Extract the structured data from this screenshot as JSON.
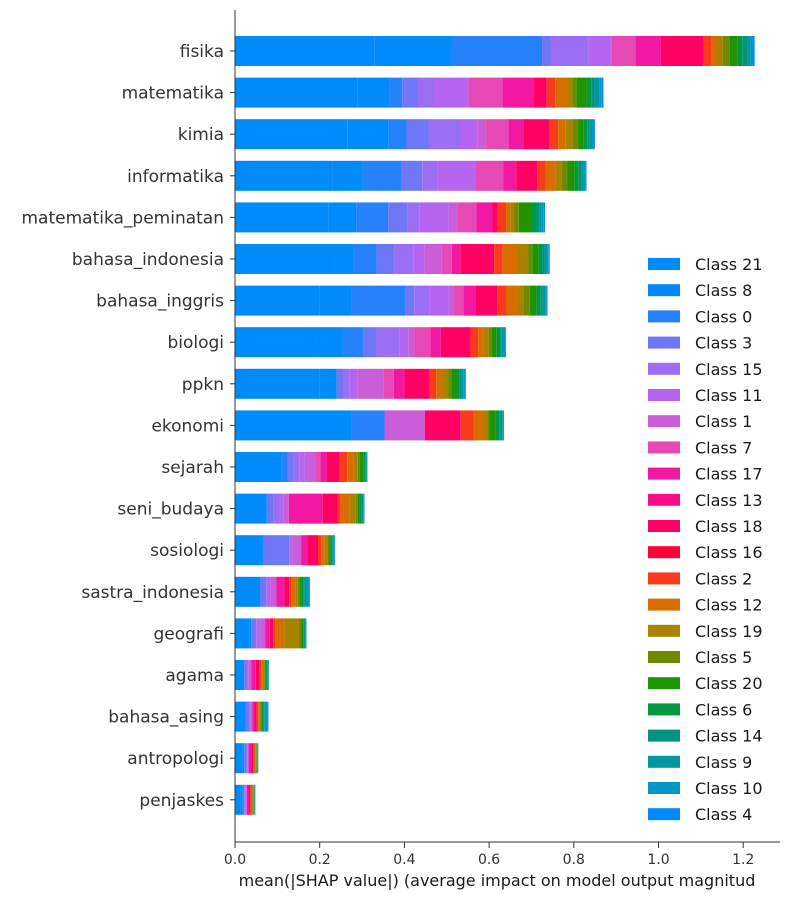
{
  "chart_data": {
    "type": "bar",
    "orientation": "horizontal",
    "stacked": true,
    "title": "",
    "xlabel": "mean(|SHAP value|) (average impact on model output magnitud",
    "ylabel": "",
    "xlim": [
      0.0,
      1.27
    ],
    "x_ticks": [
      "0.0",
      "0.2",
      "0.4",
      "0.6",
      "0.8",
      "1.0",
      "1.2"
    ],
    "x_tick_values": [
      0.0,
      0.2,
      0.4,
      0.6,
      0.8,
      1.0,
      1.2
    ],
    "grid": false,
    "legend_position": "lower-right",
    "categories": [
      "fisika",
      "matematika",
      "kimia",
      "informatika",
      "matematika_peminatan",
      "bahasa_indonesia",
      "bahasa_inggris",
      "biologi",
      "ppkn",
      "ekonomi",
      "sejarah",
      "seni_budaya",
      "sosiologi",
      "sastra_indonesia",
      "geografi",
      "agama",
      "bahasa_asing",
      "antropologi",
      "penjaskes"
    ],
    "series": [
      {
        "name": "Class 21",
        "color": "#008bfb",
        "values": [
          0.33,
          0.29,
          0.265,
          0.23,
          0.22,
          0.235,
          0.2,
          0.19,
          0.2,
          0.275,
          0.11,
          0.075,
          0.065,
          0.06,
          0.035,
          0.02,
          0.025,
          0.018,
          0.014
        ]
      },
      {
        "name": "Class 8",
        "color": "#008bfb",
        "values": [
          0.18,
          0.075,
          0.098,
          0.072,
          0.066,
          0.045,
          0.075,
          0.064,
          0.04,
          0.0,
          0.0,
          0.0,
          0.003,
          0.0,
          0.003,
          0.002,
          0.001,
          0.004,
          0.004
        ]
      },
      {
        "name": "Class 0",
        "color": "#2582fb",
        "values": [
          0.215,
          0.03,
          0.042,
          0.09,
          0.076,
          0.055,
          0.128,
          0.05,
          0.0,
          0.078,
          0.015,
          0.002,
          0.0,
          0.0,
          0.0,
          0.0,
          0.0,
          0.0,
          0.002
        ]
      },
      {
        "name": "Class 3",
        "color": "#6f77f7",
        "values": [
          0.02,
          0.036,
          0.053,
          0.05,
          0.045,
          0.042,
          0.02,
          0.03,
          0.015,
          0.0,
          0.012,
          0.013,
          0.06,
          0.014,
          0.012,
          0.004,
          0.008,
          0.004,
          0.002
        ]
      },
      {
        "name": "Class 15",
        "color": "#9c6ef4",
        "values": [
          0.09,
          0.04,
          0.078,
          0.037,
          0.028,
          0.045,
          0.037,
          0.055,
          0.015,
          0.0,
          0.016,
          0.015,
          0.0,
          0.0,
          0.0,
          0.005,
          0.003,
          0.004,
          0.003
        ]
      },
      {
        "name": "Class 11",
        "color": "#b565ef",
        "values": [
          0.055,
          0.08,
          0.037,
          0.09,
          0.07,
          0.025,
          0.045,
          0.02,
          0.02,
          0.0,
          0.012,
          0.01,
          0.008,
          0.01,
          0.01,
          0.0,
          0.0,
          0.0,
          0.0
        ]
      },
      {
        "name": "Class 1",
        "color": "#c95ed8",
        "values": [
          0.0,
          0.0,
          0.02,
          0.0,
          0.02,
          0.04,
          0.012,
          0.015,
          0.06,
          0.095,
          0.025,
          0.012,
          0.02,
          0.014,
          0.012,
          0.008,
          0.004,
          0.003,
          0.003
        ]
      },
      {
        "name": "Class 7",
        "color": "#e648b5",
        "values": [
          0.055,
          0.08,
          0.053,
          0.065,
          0.045,
          0.025,
          0.022,
          0.037,
          0.025,
          0.0,
          0.012,
          0.0,
          0.0,
          0.0,
          0.0,
          0.0,
          0.0,
          0.0,
          0.0
        ]
      },
      {
        "name": "Class 17",
        "color": "#f318a3",
        "values": [
          0.06,
          0.075,
          0.035,
          0.03,
          0.038,
          0.02,
          0.03,
          0.025,
          0.025,
          0.0,
          0.015,
          0.08,
          0.015,
          0.018,
          0.01,
          0.01,
          0.005,
          0.005,
          0.004
        ]
      },
      {
        "name": "Class 13",
        "color": "#ff0a88",
        "values": [
          0.0,
          0.0,
          0.0,
          0.0,
          0.0,
          0.0,
          0.0,
          0.0,
          0.0,
          0.0,
          0.0,
          0.0,
          0.0,
          0.0,
          0.0,
          0.0,
          0.0,
          0.0,
          0.0
        ]
      },
      {
        "name": "Class 18",
        "color": "#ff0063",
        "values": [
          0.1,
          0.03,
          0.062,
          0.05,
          0.012,
          0.08,
          0.05,
          0.07,
          0.06,
          0.085,
          0.03,
          0.035,
          0.025,
          0.012,
          0.008,
          0.008,
          0.005,
          0.005,
          0.004
        ]
      },
      {
        "name": "Class 16",
        "color": "#ff0036",
        "values": [
          0.0,
          0.0,
          0.0,
          0.0,
          0.0,
          0.0,
          0.0,
          0.0,
          0.0,
          0.0,
          0.0,
          0.0,
          0.0,
          0.0,
          0.0,
          0.0,
          0.0,
          0.0,
          0.0
        ]
      },
      {
        "name": "Class 2",
        "color": "#f73b1b",
        "values": [
          0.02,
          0.02,
          0.02,
          0.02,
          0.02,
          0.02,
          0.022,
          0.018,
          0.015,
          0.03,
          0.018,
          0.008,
          0.008,
          0.006,
          0.006,
          0.005,
          0.004,
          0.003,
          0.003
        ]
      },
      {
        "name": "Class 12",
        "color": "#d66e00",
        "values": [
          0.012,
          0.028,
          0.018,
          0.023,
          0.01,
          0.035,
          0.026,
          0.013,
          0.015,
          0.025,
          0.015,
          0.02,
          0.008,
          0.008,
          0.02,
          0.004,
          0.003,
          0.002,
          0.002
        ]
      },
      {
        "name": "Class 19",
        "color": "#a88200",
        "values": [
          0.015,
          0.012,
          0.017,
          0.015,
          0.01,
          0.025,
          0.014,
          0.012,
          0.013,
          0.008,
          0.01,
          0.015,
          0.006,
          0.006,
          0.035,
          0.003,
          0.002,
          0.002,
          0.002
        ]
      },
      {
        "name": "Class 5",
        "color": "#6f8a00",
        "values": [
          0.015,
          0.01,
          0.012,
          0.013,
          0.01,
          0.01,
          0.015,
          0.007,
          0.008,
          0.005,
          0.005,
          0.005,
          0.004,
          0.004,
          0.006,
          0.002,
          0.002,
          0.001,
          0.001
        ]
      },
      {
        "name": "Class 20",
        "color": "#1f9400",
        "values": [
          0.02,
          0.025,
          0.012,
          0.017,
          0.03,
          0.015,
          0.015,
          0.012,
          0.012,
          0.015,
          0.008,
          0.005,
          0.004,
          0.006,
          0.004,
          0.003,
          0.003,
          0.001,
          0.001
        ]
      },
      {
        "name": "Class 6",
        "color": "#009841",
        "values": [
          0.012,
          0.01,
          0.01,
          0.01,
          0.012,
          0.008,
          0.01,
          0.008,
          0.008,
          0.008,
          0.004,
          0.004,
          0.003,
          0.004,
          0.003,
          0.002,
          0.002,
          0.001,
          0.001
        ]
      },
      {
        "name": "Class 14",
        "color": "#009480",
        "values": [
          0.01,
          0.008,
          0.006,
          0.006,
          0.006,
          0.006,
          0.006,
          0.004,
          0.004,
          0.004,
          0.002,
          0.002,
          0.002,
          0.003,
          0.002,
          0.002,
          0.002,
          0.001,
          0.001
        ]
      },
      {
        "name": "Class 9",
        "color": "#0097a0",
        "values": [
          0.008,
          0.012,
          0.006,
          0.006,
          0.006,
          0.006,
          0.006,
          0.005,
          0.005,
          0.004,
          0.002,
          0.002,
          0.002,
          0.006,
          0.002,
          0.001,
          0.004,
          0.001,
          0.001
        ]
      },
      {
        "name": "Class 10",
        "color": "#0097c4",
        "values": [
          0.006,
          0.005,
          0.004,
          0.004,
          0.004,
          0.004,
          0.003,
          0.003,
          0.003,
          0.002,
          0.001,
          0.002,
          0.002,
          0.004,
          0.001,
          0.001,
          0.004,
          0.0,
          0.0
        ]
      },
      {
        "name": "Class 4",
        "color": "#008bfb",
        "values": [
          0.004,
          0.004,
          0.002,
          0.002,
          0.004,
          0.002,
          0.002,
          0.002,
          0.002,
          0.001,
          0.001,
          0.001,
          0.001,
          0.002,
          0.0,
          0.0,
          0.002,
          0.0,
          0.0
        ]
      }
    ],
    "legend_order": [
      "Class 21",
      "Class 8",
      "Class 0",
      "Class 3",
      "Class 15",
      "Class 11",
      "Class 1",
      "Class 7",
      "Class 17",
      "Class 13",
      "Class 18",
      "Class 16",
      "Class 2",
      "Class 12",
      "Class 19",
      "Class 5",
      "Class 20",
      "Class 6",
      "Class 14",
      "Class 9",
      "Class 10",
      "Class 4"
    ],
    "legend_colors": [
      "#008bfb",
      "#0088fb",
      "#2582fb",
      "#6f77f7",
      "#9c6ef4",
      "#b565ef",
      "#c95ed8",
      "#e648b5",
      "#f318a3",
      "#ff0a88",
      "#ff0063",
      "#ff0036",
      "#f73b1b",
      "#d66e00",
      "#a88200",
      "#6f8a00",
      "#1f9400",
      "#009841",
      "#009480",
      "#0097a0",
      "#0097c4",
      "#008bfb"
    ]
  }
}
